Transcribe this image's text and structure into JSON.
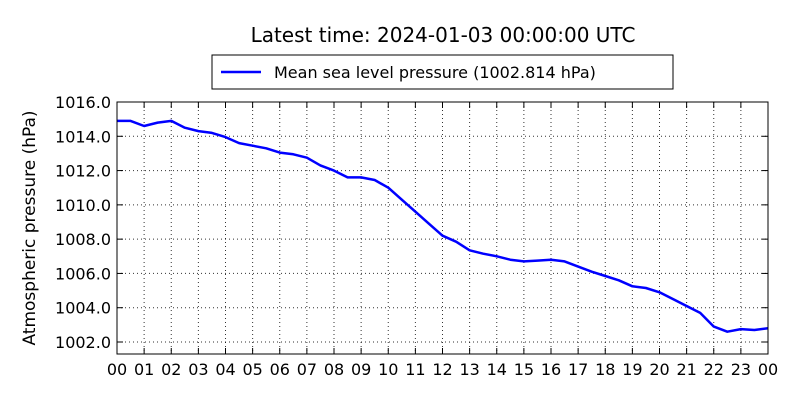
{
  "chart_data": {
    "type": "line",
    "title": "Latest time: 2024-01-03 00:00:00 UTC",
    "xlabel": "",
    "ylabel": "Atmospheric pressure (hPa)",
    "x_tick_labels": [
      "00",
      "01",
      "02",
      "03",
      "04",
      "05",
      "06",
      "07",
      "08",
      "09",
      "10",
      "11",
      "12",
      "13",
      "14",
      "15",
      "16",
      "17",
      "18",
      "19",
      "20",
      "21",
      "22",
      "23",
      "00"
    ],
    "x_unit": "hours (UTC)",
    "xlim": [
      0,
      24
    ],
    "ylim": [
      1001.3,
      1016.0
    ],
    "y_ticks": [
      1002.0,
      1004.0,
      1006.0,
      1008.0,
      1010.0,
      1012.0,
      1014.0,
      1016.0
    ],
    "y_tick_labels": [
      "1002.0",
      "1004.0",
      "1006.0",
      "1008.0",
      "1010.0",
      "1012.0",
      "1014.0",
      "1016.0"
    ],
    "grid": true,
    "legend_position": "top-center",
    "series": [
      {
        "name": "Mean sea level pressure (1002.814 hPa)",
        "color": "#0000ff",
        "points": [
          [
            0.0,
            1014.9
          ],
          [
            0.5,
            1014.9
          ],
          [
            1.0,
            1014.6
          ],
          [
            1.5,
            1014.8
          ],
          [
            2.0,
            1014.9
          ],
          [
            2.5,
            1014.5
          ],
          [
            3.0,
            1014.3
          ],
          [
            3.5,
            1014.2
          ],
          [
            4.0,
            1013.95
          ],
          [
            4.5,
            1013.6
          ],
          [
            5.0,
            1013.45
          ],
          [
            5.5,
            1013.3
          ],
          [
            6.0,
            1013.05
          ],
          [
            6.5,
            1012.95
          ],
          [
            7.0,
            1012.75
          ],
          [
            7.5,
            1012.3
          ],
          [
            8.0,
            1012.0
          ],
          [
            8.5,
            1011.6
          ],
          [
            9.0,
            1011.6
          ],
          [
            9.5,
            1011.45
          ],
          [
            10.0,
            1011.0
          ],
          [
            10.5,
            1010.3
          ],
          [
            11.0,
            1009.6
          ],
          [
            11.5,
            1008.9
          ],
          [
            12.0,
            1008.2
          ],
          [
            12.5,
            1007.85
          ],
          [
            13.0,
            1007.35
          ],
          [
            13.5,
            1007.15
          ],
          [
            14.0,
            1007.0
          ],
          [
            14.5,
            1006.8
          ],
          [
            15.0,
            1006.7
          ],
          [
            15.5,
            1006.75
          ],
          [
            16.0,
            1006.8
          ],
          [
            16.5,
            1006.7
          ],
          [
            17.0,
            1006.4
          ],
          [
            17.5,
            1006.1
          ],
          [
            18.0,
            1005.85
          ],
          [
            18.5,
            1005.6
          ],
          [
            19.0,
            1005.25
          ],
          [
            19.5,
            1005.15
          ],
          [
            20.0,
            1004.9
          ],
          [
            20.5,
            1004.5
          ],
          [
            21.0,
            1004.1
          ],
          [
            21.5,
            1003.7
          ],
          [
            22.0,
            1002.9
          ],
          [
            22.5,
            1002.6
          ],
          [
            23.0,
            1002.75
          ],
          [
            23.5,
            1002.7
          ],
          [
            24.0,
            1002.8
          ]
        ]
      }
    ]
  }
}
